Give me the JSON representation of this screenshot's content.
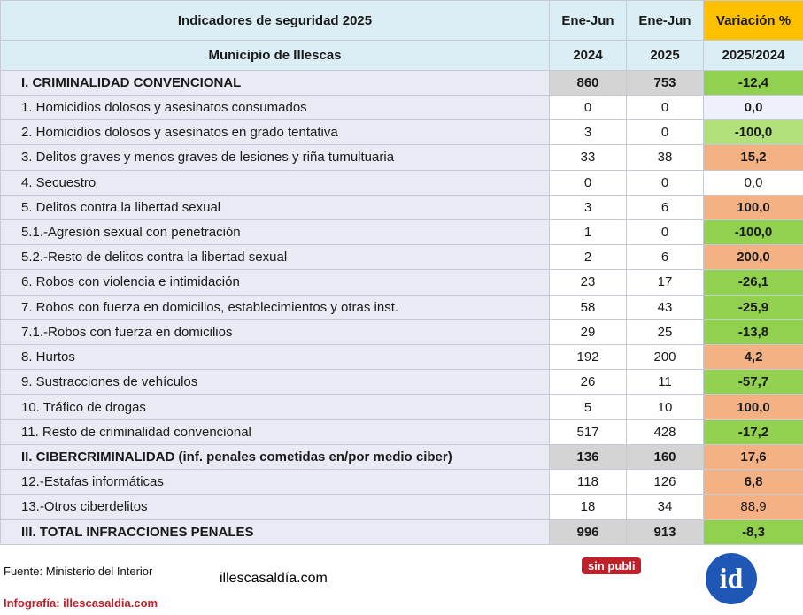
{
  "table": {
    "title": "Indicadores de seguridad 2025",
    "subtitle": "Municipio de Illescas",
    "col_period_2024": "Ene-Jun",
    "col_period_2025": "Ene-Jun",
    "col_variation": "Variación %",
    "col_year_2024": "2024",
    "col_year_2025": "2025",
    "col_var_range": "2025/2024"
  },
  "chart_data": {
    "type": "table",
    "title": "Indicadores de seguridad 2025",
    "subtitle": "Municipio de Illescas",
    "columns": [
      "Ene-Jun 2024",
      "Ene-Jun 2025",
      "Variación % 2025/2024"
    ],
    "rows": [
      {
        "label": "I. CRIMINALIDAD CONVENCIONAL",
        "v2024": "860",
        "v2025": "753",
        "var": "-12,4",
        "section": true,
        "color": "green"
      },
      {
        "label": "1. Homicidios dolosos y asesinatos consumados",
        "v2024": "0",
        "v2025": "0",
        "var": "0,0",
        "color": "pale"
      },
      {
        "label": "2. Homicidios dolosos y asesinatos en grado tentativa",
        "v2024": "3",
        "v2025": "0",
        "var": "-100,0",
        "color": "lightgreen"
      },
      {
        "label": "3. Delitos graves y menos graves de lesiones y riña tumultuaria",
        "v2024": "33",
        "v2025": "38",
        "var": "15,2",
        "color": "salmon"
      },
      {
        "label": "4. Secuestro",
        "v2024": "0",
        "v2025": "0",
        "var": "0,0",
        "color": "white",
        "plain": true
      },
      {
        "label": "5. Delitos contra la libertad sexual",
        "v2024": "3",
        "v2025": "6",
        "var": "100,0",
        "color": "salmon"
      },
      {
        "label": "5.1.-Agresión sexual con penetración",
        "v2024": "1",
        "v2025": "0",
        "var": "-100,0",
        "color": "green"
      },
      {
        "label": "5.2.-Resto de delitos contra la libertad sexual",
        "v2024": "2",
        "v2025": "6",
        "var": "200,0",
        "color": "salmon"
      },
      {
        "label": "6. Robos con violencia e intimidación",
        "v2024": "23",
        "v2025": "17",
        "var": "-26,1",
        "color": "green"
      },
      {
        "label": "7. Robos con fuerza en domicilios, establecimientos y otras inst.",
        "v2024": "58",
        "v2025": "43",
        "var": "-25,9",
        "color": "green"
      },
      {
        "label": "7.1.-Robos con fuerza en domicilios",
        "v2024": "29",
        "v2025": "25",
        "var": "-13,8",
        "color": "green"
      },
      {
        "label": "8. Hurtos",
        "v2024": "192",
        "v2025": "200",
        "var": "4,2",
        "color": "salmon"
      },
      {
        "label": "9. Sustracciones de vehículos",
        "v2024": "26",
        "v2025": "11",
        "var": "-57,7",
        "color": "green"
      },
      {
        "label": "10. Tráfico de drogas",
        "v2024": "5",
        "v2025": "10",
        "var": "100,0",
        "color": "salmon"
      },
      {
        "label": "11. Resto de criminalidad convencional",
        "v2024": "517",
        "v2025": "428",
        "var": "-17,2",
        "color": "green"
      },
      {
        "label": "II. CIBERCRIMINALIDAD (inf. penales cometidas en/por medio ciber)",
        "v2024": "136",
        "v2025": "160",
        "var": "17,6",
        "section": true,
        "color": "salmon"
      },
      {
        "label": "12.-Estafas informáticas",
        "v2024": "118",
        "v2025": "126",
        "var": "6,8",
        "color": "salmon"
      },
      {
        "label": "13.-Otros ciberdelitos",
        "v2024": "18",
        "v2025": "34",
        "var": "88,9",
        "color": "salmon",
        "plain": true
      },
      {
        "label": "III. TOTAL INFRACCIONES PENALES",
        "v2024": "996",
        "v2025": "913",
        "var": "-8,3",
        "section": true,
        "color": "green"
      }
    ]
  },
  "footer": {
    "source": "Fuente: Ministerio del Interior",
    "credit": "Infografía: illescasaldia.com",
    "brand_part1": "illescas",
    "brand_part2": "al",
    "brand_part3": "día",
    "brand_part4": ".com",
    "badge": "sin publi",
    "logo_text": "id",
    "brand_color": "#1f57b6",
    "badge_color": "#c0202a"
  }
}
